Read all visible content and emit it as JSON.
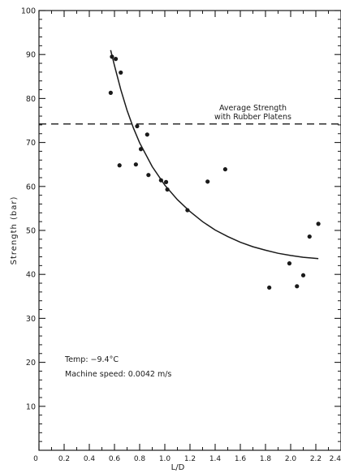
{
  "chart_data": {
    "type": "scatter",
    "xlabel": "L/D",
    "ylabel": "Strength  (bar)",
    "xlim": [
      0,
      2.4
    ],
    "ylim": [
      0,
      100
    ],
    "xticks": [
      {
        "v": 0,
        "label": "0"
      },
      {
        "v": 0.2,
        "label": "0.2"
      },
      {
        "v": 0.4,
        "label": "0.4"
      },
      {
        "v": 0.6,
        "label": "0.6"
      },
      {
        "v": 0.8,
        "label": "0.8"
      },
      {
        "v": 1.0,
        "label": "1.0"
      },
      {
        "v": 1.2,
        "label": "1.2"
      },
      {
        "v": 1.4,
        "label": "1.4"
      },
      {
        "v": 1.6,
        "label": "1.6"
      },
      {
        "v": 1.8,
        "label": "1.8"
      },
      {
        "v": 2.0,
        "label": "2.0"
      },
      {
        "v": 2.2,
        "label": "2.2"
      },
      {
        "v": 2.4,
        "label": "2.4"
      }
    ],
    "yticks": [
      {
        "v": 10,
        "label": "10"
      },
      {
        "v": 20,
        "label": "20"
      },
      {
        "v": 30,
        "label": "30"
      },
      {
        "v": 40,
        "label": "40"
      },
      {
        "v": 50,
        "label": "50"
      },
      {
        "v": 60,
        "label": "60"
      },
      {
        "v": 70,
        "label": "70"
      },
      {
        "v": 80,
        "label": "80"
      },
      {
        "v": 90,
        "label": "90"
      },
      {
        "v": 100,
        "label": "100"
      }
    ],
    "points": [
      {
        "x": 0.57,
        "y": 81.3
      },
      {
        "x": 0.58,
        "y": 89.5
      },
      {
        "x": 0.61,
        "y": 89.0
      },
      {
        "x": 0.65,
        "y": 85.9
      },
      {
        "x": 0.64,
        "y": 64.8
      },
      {
        "x": 0.77,
        "y": 65.0
      },
      {
        "x": 0.78,
        "y": 73.7
      },
      {
        "x": 0.81,
        "y": 68.5
      },
      {
        "x": 0.86,
        "y": 71.8
      },
      {
        "x": 0.87,
        "y": 62.6
      },
      {
        "x": 0.97,
        "y": 61.4
      },
      {
        "x": 1.01,
        "y": 61.0
      },
      {
        "x": 1.02,
        "y": 59.3
      },
      {
        "x": 1.18,
        "y": 54.6
      },
      {
        "x": 1.34,
        "y": 61.1
      },
      {
        "x": 1.48,
        "y": 63.9
      },
      {
        "x": 1.83,
        "y": 37.0
      },
      {
        "x": 1.99,
        "y": 42.5
      },
      {
        "x": 2.05,
        "y": 37.3
      },
      {
        "x": 2.1,
        "y": 39.8
      },
      {
        "x": 2.15,
        "y": 48.6
      },
      {
        "x": 2.22,
        "y": 51.5
      }
    ],
    "fit_curve": [
      {
        "x": 0.57,
        "y": 91.0
      },
      {
        "x": 0.6,
        "y": 87.5
      },
      {
        "x": 0.65,
        "y": 82.0
      },
      {
        "x": 0.7,
        "y": 77.3
      },
      {
        "x": 0.75,
        "y": 73.3
      },
      {
        "x": 0.8,
        "y": 69.9
      },
      {
        "x": 0.9,
        "y": 64.5
      },
      {
        "x": 1.0,
        "y": 60.3
      },
      {
        "x": 1.1,
        "y": 57.0
      },
      {
        "x": 1.2,
        "y": 54.3
      },
      {
        "x": 1.3,
        "y": 52.0
      },
      {
        "x": 1.4,
        "y": 50.1
      },
      {
        "x": 1.5,
        "y": 48.6
      },
      {
        "x": 1.6,
        "y": 47.3
      },
      {
        "x": 1.7,
        "y": 46.3
      },
      {
        "x": 1.8,
        "y": 45.5
      },
      {
        "x": 1.9,
        "y": 44.8
      },
      {
        "x": 2.0,
        "y": 44.3
      },
      {
        "x": 2.1,
        "y": 43.9
      },
      {
        "x": 2.22,
        "y": 43.6
      }
    ],
    "reference_line": {
      "y": 74.2,
      "style": "dashed",
      "label_line1": "Average Strength",
      "label_line2": "with Rubber Platens"
    },
    "annotation_temp": "Temp: −9.4°C",
    "annotation_speed": "Machine  speed: 0.0042 m/s",
    "grid": false
  }
}
